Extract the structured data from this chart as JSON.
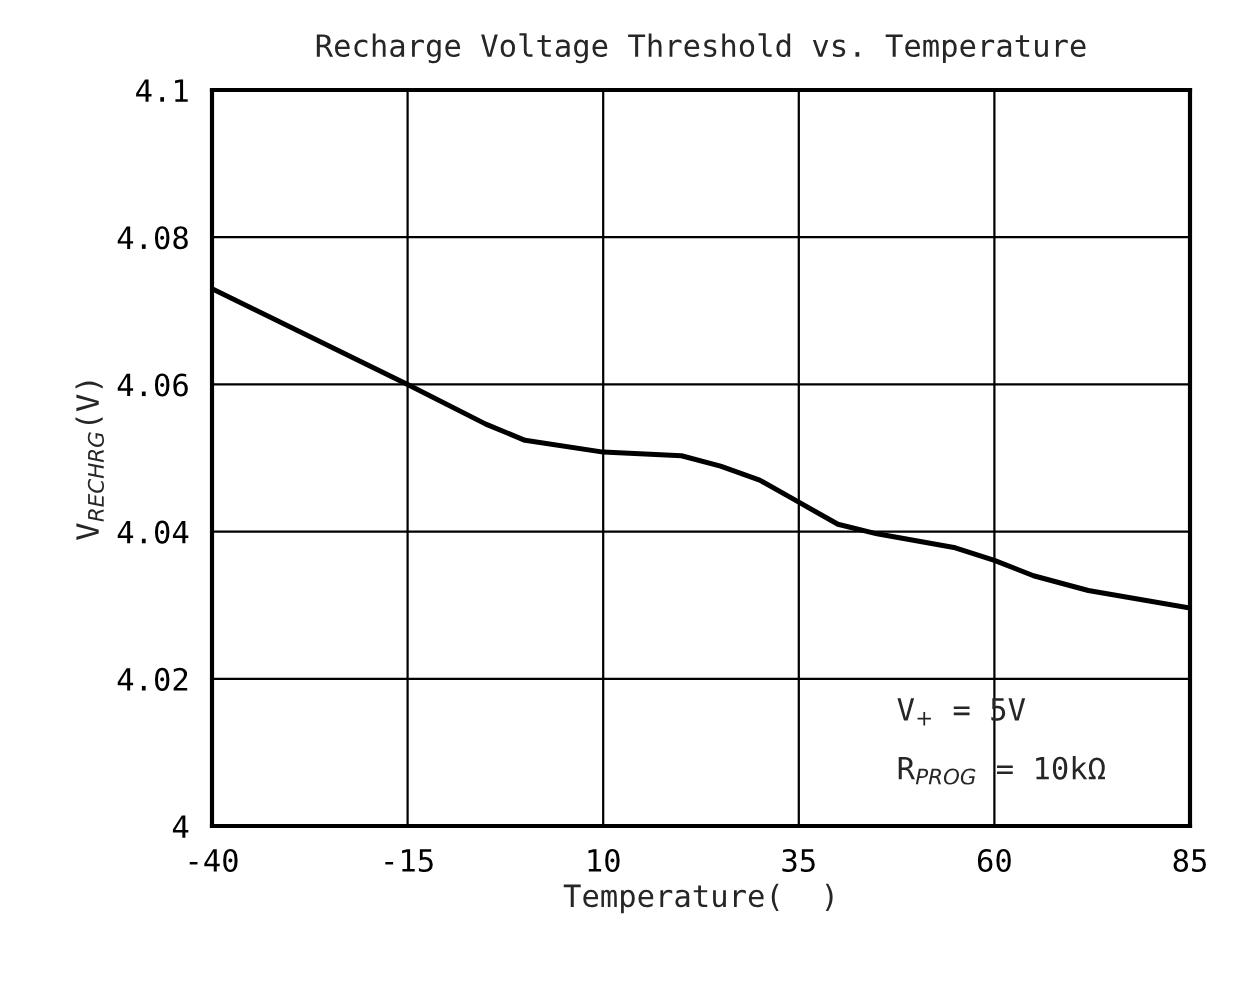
{
  "chart_data": {
    "type": "line",
    "title": "Recharge Voltage Threshold vs. Temperature",
    "xlabel": "Temperature(  )",
    "ylabel": "V$_{RECHRG}$(V)",
    "x": [
      -40,
      -15,
      -5,
      0,
      10,
      20,
      25,
      30,
      35,
      40,
      45,
      55,
      60,
      65,
      72,
      85
    ],
    "series": [
      {
        "color": "#000000",
        "values": [
          4.073,
          4.06,
          4.0546,
          4.0524,
          4.0508,
          4.0503,
          4.0489,
          4.047,
          4.044,
          4.041,
          4.0397,
          4.0378,
          4.0361,
          4.034,
          4.032,
          4.0296
        ]
      }
    ],
    "xlim": [
      -40,
      85
    ],
    "xticks": [
      -40,
      -15,
      10,
      35,
      60,
      85
    ],
    "ylim": [
      4,
      4.1
    ],
    "yticks": [
      4,
      4.02,
      4.04,
      4.06,
      4.08,
      4.1
    ],
    "grid": true,
    "annotations": [
      "V$_{+}$ = 5V",
      "R$_{PROG}$ = 10kΩ"
    ]
  }
}
